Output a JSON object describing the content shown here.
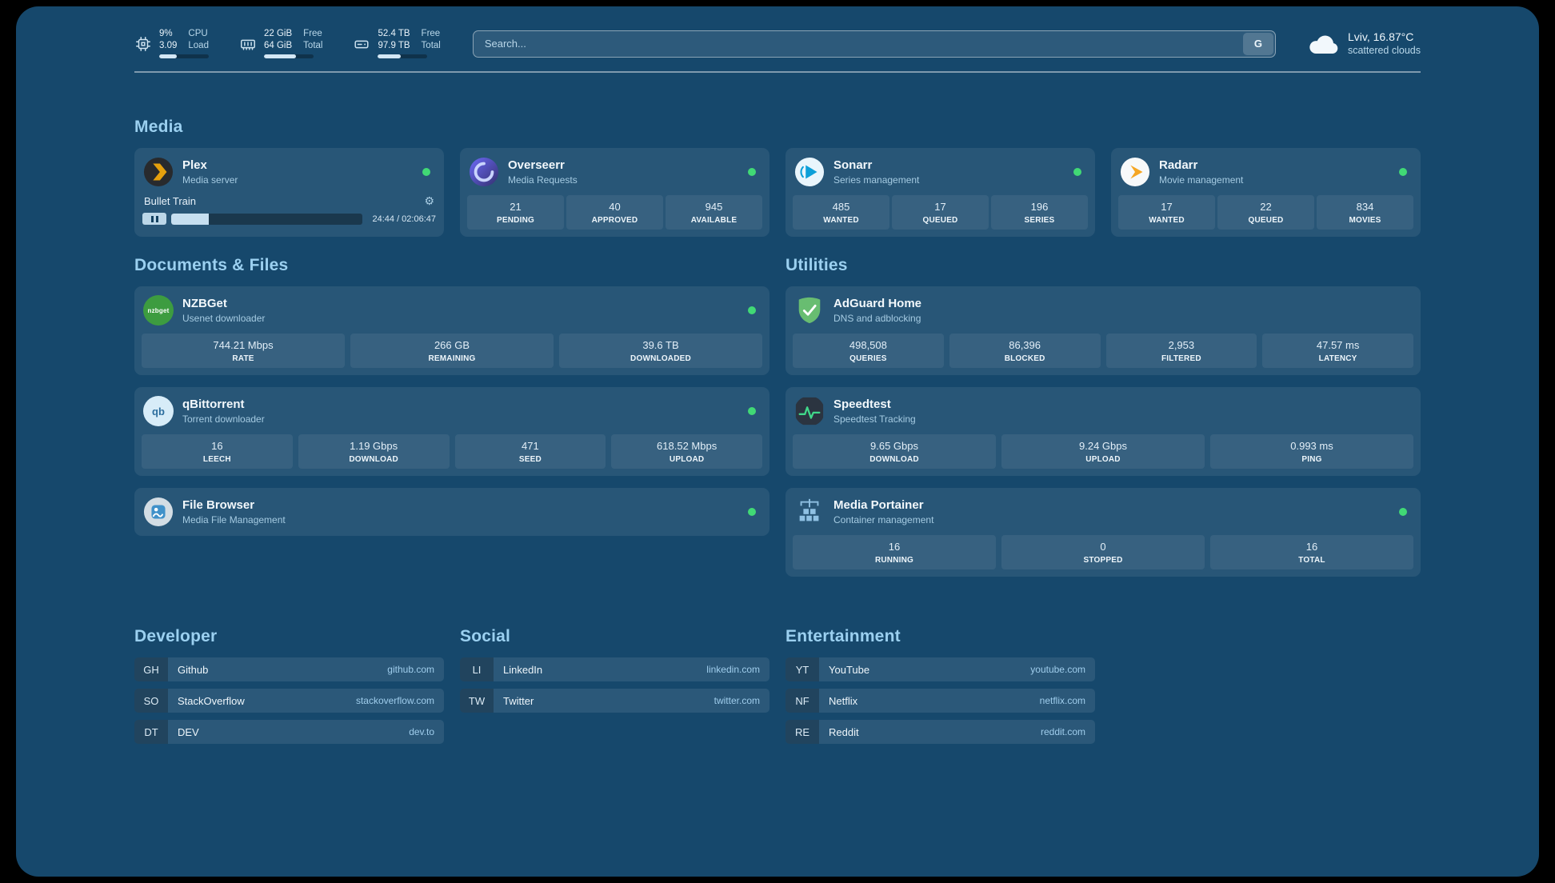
{
  "colors": {
    "background": "#16486c",
    "status_online": "#41d975",
    "plex_accent": "#e5a00d",
    "adguard_green": "#68bd71",
    "speedtest_green": "#40d98a"
  },
  "topbar": {
    "cpu": {
      "icon": "cpu-icon",
      "values": [
        "9%",
        "3.09"
      ],
      "labels": [
        "CPU",
        "Load"
      ],
      "bar_percent": 35
    },
    "memory": {
      "icon": "memory-icon",
      "values": [
        "22 GiB",
        "64 GiB"
      ],
      "labels": [
        "Free",
        "Total"
      ],
      "bar_percent": 65
    },
    "disk": {
      "icon": "disk-icon",
      "values": [
        "52.4 TB",
        "97.9 TB"
      ],
      "labels": [
        "Free",
        "Total"
      ],
      "bar_percent": 46
    },
    "search": {
      "placeholder": "Search...",
      "button_label": "G"
    },
    "weather": {
      "icon": "cloud-icon",
      "location": "Lviv, 16.87°C",
      "condition": "scattered clouds"
    }
  },
  "sections": {
    "media": {
      "title": "Media",
      "cards": [
        {
          "name": "Plex",
          "subtitle": "Media server",
          "icon": "plex-icon",
          "online": true,
          "now_playing": {
            "title": "Bullet Train",
            "time": "24:44 / 02:06:47",
            "progress_percent": 19.5
          }
        },
        {
          "name": "Overseerr",
          "subtitle": "Media Requests",
          "icon": "overseerr-icon",
          "online": true,
          "stats": [
            {
              "value": "21",
              "label": "PENDING"
            },
            {
              "value": "40",
              "label": "APPROVED"
            },
            {
              "value": "945",
              "label": "AVAILABLE"
            }
          ]
        },
        {
          "name": "Sonarr",
          "subtitle": "Series management",
          "icon": "sonarr-icon",
          "online": true,
          "stats": [
            {
              "value": "485",
              "label": "WANTED"
            },
            {
              "value": "17",
              "label": "QUEUED"
            },
            {
              "value": "196",
              "label": "SERIES"
            }
          ]
        },
        {
          "name": "Radarr",
          "subtitle": "Movie management",
          "icon": "radarr-icon",
          "online": true,
          "stats": [
            {
              "value": "17",
              "label": "WANTED"
            },
            {
              "value": "22",
              "label": "QUEUED"
            },
            {
              "value": "834",
              "label": "MOVIES"
            }
          ]
        }
      ]
    },
    "documents": {
      "title": "Documents & Files",
      "cards": [
        {
          "name": "NZBGet",
          "subtitle": "Usenet downloader",
          "icon": "nzbget-icon",
          "icon_text": "nzbget",
          "online": true,
          "stats": [
            {
              "value": "744.21 Mbps",
              "label": "RATE"
            },
            {
              "value": "266 GB",
              "label": "REMAINING"
            },
            {
              "value": "39.6 TB",
              "label": "DOWNLOADED"
            }
          ]
        },
        {
          "name": "qBittorrent",
          "subtitle": "Torrent downloader",
          "icon": "qbittorrent-icon",
          "icon_text": "qb",
          "online": true,
          "stats": [
            {
              "value": "16",
              "label": "LEECH"
            },
            {
              "value": "1.19 Gbps",
              "label": "DOWNLOAD"
            },
            {
              "value": "471",
              "label": "SEED"
            },
            {
              "value": "618.52 Mbps",
              "label": "UPLOAD"
            }
          ]
        },
        {
          "name": "File Browser",
          "subtitle": "Media File Management",
          "icon": "filebrowser-icon",
          "online": true,
          "stats": []
        }
      ]
    },
    "utilities": {
      "title": "Utilities",
      "cards": [
        {
          "name": "AdGuard Home",
          "subtitle": "DNS and adblocking",
          "icon": "adguard-icon",
          "online": false,
          "stats": [
            {
              "value": "498,508",
              "label": "QUERIES"
            },
            {
              "value": "86,396",
              "label": "BLOCKED"
            },
            {
              "value": "2,953",
              "label": "FILTERED"
            },
            {
              "value": "47.57 ms",
              "label": "LATENCY"
            }
          ]
        },
        {
          "name": "Speedtest",
          "subtitle": "Speedtest Tracking",
          "icon": "speedtest-icon",
          "online": false,
          "stats": [
            {
              "value": "9.65 Gbps",
              "label": "DOWNLOAD"
            },
            {
              "value": "9.24 Gbps",
              "label": "UPLOAD"
            },
            {
              "value": "0.993 ms",
              "label": "PING"
            }
          ]
        },
        {
          "name": "Media Portainer",
          "subtitle": "Container management",
          "icon": "portainer-icon",
          "online": true,
          "stats": [
            {
              "value": "16",
              "label": "RUNNING"
            },
            {
              "value": "0",
              "label": "STOPPED"
            },
            {
              "value": "16",
              "label": "TOTAL"
            }
          ]
        }
      ]
    }
  },
  "bookmarks": [
    {
      "title": "Developer",
      "items": [
        {
          "abbr": "GH",
          "name": "Github",
          "domain": "github.com"
        },
        {
          "abbr": "SO",
          "name": "StackOverflow",
          "domain": "stackoverflow.com"
        },
        {
          "abbr": "DT",
          "name": "DEV",
          "domain": "dev.to"
        }
      ]
    },
    {
      "title": "Social",
      "items": [
        {
          "abbr": "LI",
          "name": "LinkedIn",
          "domain": "linkedin.com"
        },
        {
          "abbr": "TW",
          "name": "Twitter",
          "domain": "twitter.com"
        }
      ]
    },
    {
      "title": "Entertainment",
      "items": [
        {
          "abbr": "YT",
          "name": "YouTube",
          "domain": "youtube.com"
        },
        {
          "abbr": "NF",
          "name": "Netflix",
          "domain": "netflix.com"
        },
        {
          "abbr": "RE",
          "name": "Reddit",
          "domain": "reddit.com"
        }
      ]
    }
  ]
}
